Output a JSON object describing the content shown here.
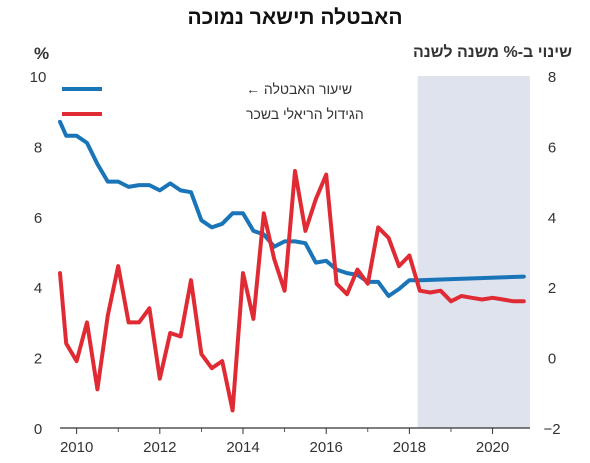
{
  "title": "האבטלה תישאר נמוכה",
  "left_axis_unit": "%",
  "right_axis_unit": "שינוי ב-% משנה לשנה",
  "chart_data": {
    "type": "line",
    "title": "האבטלה תישאר נמוכה",
    "xlim": [
      2009.6,
      2020.9
    ],
    "x_ticks": [
      2010,
      2012,
      2014,
      2016,
      2018,
      2020
    ],
    "forecast_start": 2018.2,
    "left_axis": {
      "ylim": [
        0,
        10
      ],
      "ticks": [
        0,
        2,
        4,
        6,
        8,
        10
      ]
    },
    "right_axis": {
      "ylim": [
        -2,
        8
      ],
      "ticks": [
        -2,
        0,
        2,
        4,
        6,
        8
      ]
    },
    "legend_position": "top-left",
    "grid": false,
    "series": [
      {
        "name": "שיעור האבטלה ←",
        "axis": "left",
        "color": "#1a74b8",
        "x": [
          2009.5,
          2009.75,
          2010.0,
          2010.25,
          2010.5,
          2010.75,
          2011.0,
          2011.25,
          2011.5,
          2011.75,
          2012.0,
          2012.25,
          2012.5,
          2012.75,
          2013.0,
          2013.25,
          2013.5,
          2013.75,
          2014.0,
          2014.25,
          2014.5,
          2014.75,
          2015.0,
          2015.25,
          2015.5,
          2015.75,
          2016.0,
          2016.25,
          2016.5,
          2016.75,
          2017.0,
          2017.25,
          2017.5,
          2017.75,
          2018.0,
          2018.25,
          2020.75
        ],
        "values": [
          8.7,
          8.3,
          8.3,
          8.1,
          7.5,
          7.0,
          7.0,
          6.85,
          6.9,
          6.9,
          6.75,
          6.95,
          6.75,
          6.7,
          5.9,
          5.7,
          5.8,
          6.1,
          6.1,
          5.6,
          5.5,
          5.15,
          5.3,
          5.3,
          5.25,
          4.7,
          4.75,
          4.5,
          4.4,
          4.35,
          4.15,
          4.15,
          3.75,
          3.95,
          4.2,
          4.2,
          4.3
        ]
      },
      {
        "name": "הגידול הריאלי בשכר",
        "axis": "right",
        "color": "#e02b35",
        "x": [
          2009.5,
          2009.75,
          2010.0,
          2010.25,
          2010.5,
          2010.75,
          2011.0,
          2011.25,
          2011.5,
          2011.75,
          2012.0,
          2012.25,
          2012.5,
          2012.75,
          2013.0,
          2013.25,
          2013.5,
          2013.75,
          2014.0,
          2014.25,
          2014.5,
          2014.75,
          2015.0,
          2015.25,
          2015.5,
          2015.75,
          2016.0,
          2016.25,
          2016.5,
          2016.75,
          2017.0,
          2017.25,
          2017.5,
          2017.75,
          2018.0,
          2018.25,
          2018.5,
          2018.75,
          2019.0,
          2019.25,
          2019.5,
          2019.75,
          2020.0,
          2020.25,
          2020.5,
          2020.75
        ],
        "values": [
          2.4,
          0.4,
          -0.1,
          1.0,
          -0.9,
          1.2,
          2.6,
          1.0,
          1.0,
          1.4,
          -0.6,
          0.7,
          0.6,
          2.2,
          0.1,
          -0.3,
          -0.1,
          -1.5,
          2.4,
          1.1,
          4.1,
          2.8,
          1.9,
          5.3,
          3.6,
          4.5,
          5.2,
          2.1,
          1.8,
          2.5,
          2.1,
          3.7,
          3.4,
          2.6,
          2.9,
          1.9,
          1.85,
          1.9,
          1.6,
          1.75,
          1.7,
          1.65,
          1.7,
          1.65,
          1.6,
          1.6
        ]
      }
    ]
  }
}
